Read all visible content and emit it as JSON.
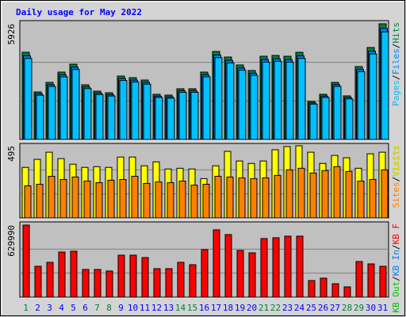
{
  "chart_data": [
    {
      "type": "bar",
      "title": "Daily usage for May 2022",
      "ylim": [
        0,
        5926
      ],
      "yticks": [
        5926
      ],
      "legend_separator": "/",
      "series": [
        {
          "name": "Pages",
          "color": "#00c0ff",
          "values": [
            4153,
            2265,
            2718,
            3209,
            3587,
            2605,
            2303,
            2227,
            3021,
            2944,
            2832,
            2152,
            2115,
            2416,
            2416,
            3209,
            4192,
            3926,
            3549,
            3285,
            3965,
            4003,
            3965,
            4153,
            1813,
            2152,
            2718,
            2077,
            3474,
            4380,
            5511
          ]
        },
        {
          "name": "Files",
          "color": "#0080ff",
          "values": [
            4287,
            2339,
            2806,
            3313,
            3703,
            2689,
            2377,
            2299,
            3118,
            3039,
            2923,
            2221,
            2183,
            2494,
            2494,
            3313,
            4327,
            4053,
            3663,
            3391,
            4092,
            4132,
            4092,
            4287,
            1871,
            2221,
            2806,
            2144,
            3586,
            4522,
            5689
          ]
        },
        {
          "name": "Hits",
          "color": "#008040",
          "values": [
            4466,
            2436,
            2923,
            3451,
            3857,
            2801,
            2476,
            2395,
            3248,
            3166,
            3045,
            2314,
            2274,
            2598,
            2598,
            3451,
            4507,
            4222,
            3816,
            3532,
            4263,
            4304,
            4263,
            4466,
            1949,
            2314,
            2923,
            2233,
            3735,
            4710,
            5926
          ]
        }
      ]
    },
    {
      "type": "bar",
      "ylim": [
        0,
        495
      ],
      "yticks": [
        495
      ],
      "legend_separator": "/",
      "series": [
        {
          "name": "Sites",
          "color": "#ff8000",
          "values": [
            220,
            231,
            286,
            264,
            281,
            253,
            242,
            259,
            264,
            286,
            237,
            247,
            242,
            253,
            225,
            231,
            286,
            281,
            275,
            270,
            275,
            292,
            330,
            341,
            308,
            325,
            352,
            319,
            253,
            264,
            330
          ]
        },
        {
          "name": "Visits",
          "color": "#ffff00",
          "values": [
            347,
            402,
            451,
            407,
            369,
            347,
            352,
            347,
            418,
            418,
            358,
            385,
            336,
            341,
            336,
            270,
            358,
            457,
            391,
            374,
            391,
            468,
            490,
            495,
            451,
            374,
            429,
            413,
            341,
            440,
            451
          ]
        }
      ]
    },
    {
      "type": "bar",
      "ylim": [
        0,
        629990
      ],
      "yticks": [
        629990
      ],
      "legend_separator": "/",
      "categories": [
        "1",
        "2",
        "3",
        "4",
        "5",
        "6",
        "7",
        "8",
        "9",
        "10",
        "11",
        "12",
        "13",
        "14",
        "15",
        "16",
        "17",
        "18",
        "19",
        "20",
        "21",
        "22",
        "23",
        "24",
        "25",
        "26",
        "27",
        "28",
        "29",
        "30",
        "31"
      ],
      "category_colors": [
        "#008040",
        "#0000ff",
        "#0000ff",
        "#0000ff",
        "#0000ff",
        "#0000ff",
        "#008040",
        "#008040",
        "#0000ff",
        "#0000ff",
        "#0000ff",
        "#0000ff",
        "#0000ff",
        "#008040",
        "#008040",
        "#0000ff",
        "#0000ff",
        "#0000ff",
        "#0000ff",
        "#0000ff",
        "#008040",
        "#008040",
        "#0000ff",
        "#0000ff",
        "#0000ff",
        "#0000ff",
        "#0000ff",
        "#008040",
        "#008040",
        "#0000ff",
        "#0000ff"
      ],
      "series": [
        {
          "name": "KB Out",
          "color": "#00c000",
          "values": [
            null,
            null,
            null,
            null,
            null,
            null,
            null,
            null,
            null,
            null,
            null,
            null,
            null,
            null,
            null,
            null,
            null,
            null,
            null,
            null,
            null,
            null,
            null,
            null,
            null,
            null,
            null,
            null,
            null,
            null,
            null
          ]
        },
        {
          "name": "KB In",
          "color": "#0080ff",
          "values": [
            null,
            null,
            null,
            null,
            null,
            null,
            null,
            null,
            null,
            null,
            null,
            null,
            null,
            null,
            null,
            null,
            null,
            null,
            null,
            null,
            null,
            null,
            null,
            null,
            null,
            null,
            null,
            null,
            null,
            null,
            null
          ]
        },
        {
          "name": "KB F",
          "color": "#ff0000",
          "values": [
            629990,
            270000,
            304600,
            394600,
            401500,
            242300,
            242300,
            228500,
            366900,
            366900,
            346200,
            249200,
            249200,
            304600,
            283800,
            415400,
            588500,
            546900,
            408500,
            387700,
            512300,
            519200,
            533100,
            533100,
            145400,
            166200,
            117700,
            90000,
            311500,
            290800,
            270000
          ]
        }
      ]
    }
  ]
}
